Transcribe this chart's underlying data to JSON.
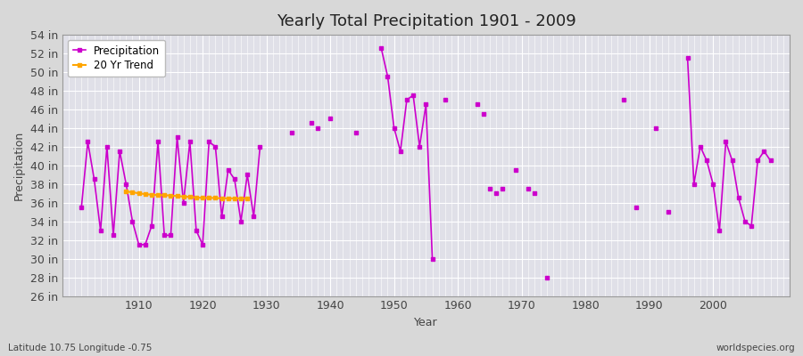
{
  "title": "Yearly Total Precipitation 1901 - 2009",
  "xlabel": "Year",
  "ylabel": "Precipitation",
  "background_color": "#d8d8d8",
  "plot_bg_color": "#e0e0e8",
  "line_color": "#cc00cc",
  "trend_color": "#ffa500",
  "ylim": [
    26,
    54
  ],
  "xlim": [
    1898,
    2012
  ],
  "ytick_step": 2,
  "grid_color": "#ffffff",
  "tick_color": "#444444",
  "label_fontsize": 9,
  "title_fontsize": 13,
  "watermark": "worldspecies.org",
  "bottom_label": "Latitude 10.75 Longitude -0.75",
  "segments": [
    {
      "years": [
        1901,
        1902,
        1903,
        1904,
        1905,
        1906,
        1907,
        1908,
        1909,
        1910,
        1911,
        1912,
        1913,
        1914,
        1915,
        1916,
        1917,
        1918,
        1919,
        1920,
        1921,
        1922,
        1923,
        1924,
        1925,
        1926,
        1927,
        1928,
        1929
      ],
      "values": [
        35.5,
        42.5,
        38.5,
        33.0,
        42.0,
        32.5,
        41.5,
        38.0,
        34.0,
        31.5,
        31.5,
        33.5,
        42.5,
        32.5,
        32.5,
        43.0,
        36.0,
        42.5,
        33.0,
        31.5,
        42.5,
        42.0,
        34.5,
        39.5,
        38.5,
        34.0,
        39.0,
        34.5,
        42.0
      ]
    },
    {
      "years": [
        1948,
        1949,
        1950,
        1951,
        1952,
        1953,
        1954,
        1955,
        1956
      ],
      "values": [
        52.5,
        49.5,
        44.0,
        41.5,
        47.0,
        47.5,
        42.0,
        46.5,
        30.0
      ]
    },
    {
      "years": [
        1996,
        1997,
        1998,
        1999,
        2000,
        2001,
        2002,
        2003,
        2004,
        2005,
        2006,
        2007,
        2008,
        2009
      ],
      "values": [
        51.5,
        38.0,
        42.0,
        40.5,
        38.0,
        33.0,
        42.5,
        40.5,
        36.5,
        34.0,
        33.5,
        40.5,
        41.5,
        40.5
      ]
    }
  ],
  "isolated": [
    {
      "year": 1934,
      "value": 43.5
    },
    {
      "year": 1937,
      "value": 44.5
    },
    {
      "year": 1938,
      "value": 44.0
    },
    {
      "year": 1940,
      "value": 45.0
    },
    {
      "year": 1944,
      "value": 43.5
    },
    {
      "year": 1958,
      "value": 47.0
    },
    {
      "year": 1963,
      "value": 46.5
    },
    {
      "year": 1964,
      "value": 45.5
    },
    {
      "year": 1965,
      "value": 37.5
    },
    {
      "year": 1966,
      "value": 37.0
    },
    {
      "year": 1967,
      "value": 37.5
    },
    {
      "year": 1969,
      "value": 39.5
    },
    {
      "year": 1971,
      "value": 37.5
    },
    {
      "year": 1972,
      "value": 37.0
    },
    {
      "year": 1974,
      "value": 28.0
    },
    {
      "year": 1986,
      "value": 47.0
    },
    {
      "year": 1988,
      "value": 35.5
    },
    {
      "year": 1991,
      "value": 44.0
    },
    {
      "year": 1993,
      "value": 35.0
    }
  ],
  "trend_years": [
    1908,
    1909,
    1910,
    1911,
    1912,
    1913,
    1914,
    1915,
    1916,
    1917,
    1918,
    1919,
    1920,
    1921,
    1922,
    1923,
    1924,
    1925,
    1926,
    1927
  ],
  "trend_values": [
    37.2,
    37.1,
    37.0,
    36.9,
    36.85,
    36.8,
    36.8,
    36.75,
    36.7,
    36.65,
    36.6,
    36.55,
    36.5,
    36.5,
    36.5,
    36.45,
    36.45,
    36.45,
    36.45,
    36.45
  ]
}
